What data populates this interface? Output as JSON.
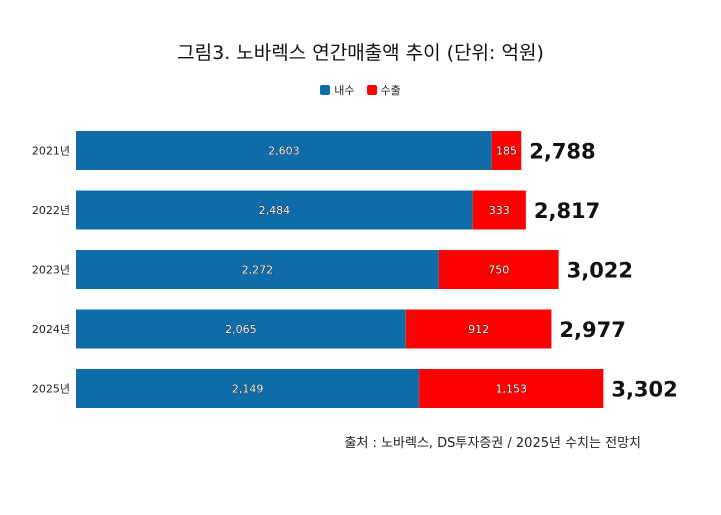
{
  "title": "그림3. 노바렉스 연간매출액 추이 (단위: 억원)",
  "source": "출처 : 노바렉스, DS투자증권 / 2025년 수치는 전망치",
  "colors": {
    "domestic": "#0f6ca8",
    "export": "#ff0000"
  },
  "chart_data": {
    "type": "bar",
    "orientation": "horizontal",
    "stacked": true,
    "title": "그림3. 노바렉스 연간매출액 추이 (단위: 억원)",
    "categories": [
      "2021년",
      "2022년",
      "2023년",
      "2024년",
      "2025년"
    ],
    "series": [
      {
        "name": "내수",
        "values": [
          2603,
          2484,
          2272,
          2065,
          2149
        ],
        "labels": [
          "2,603",
          "2,484",
          "2,272",
          "2,065",
          "2,149"
        ],
        "color": "#0f6ca8"
      },
      {
        "name": "수출",
        "values": [
          185,
          333,
          750,
          912,
          1153
        ],
        "labels": [
          "185",
          "333",
          "750",
          "912",
          "1,153"
        ],
        "color": "#ff0000"
      }
    ],
    "totals": [
      2788,
      2817,
      3022,
      2977,
      3302
    ],
    "total_labels": [
      "2,788",
      "2,817",
      "3,022",
      "2,977",
      "3,302"
    ],
    "xlim": [
      0,
      3302
    ],
    "legend": "top-center",
    "grid": false
  }
}
